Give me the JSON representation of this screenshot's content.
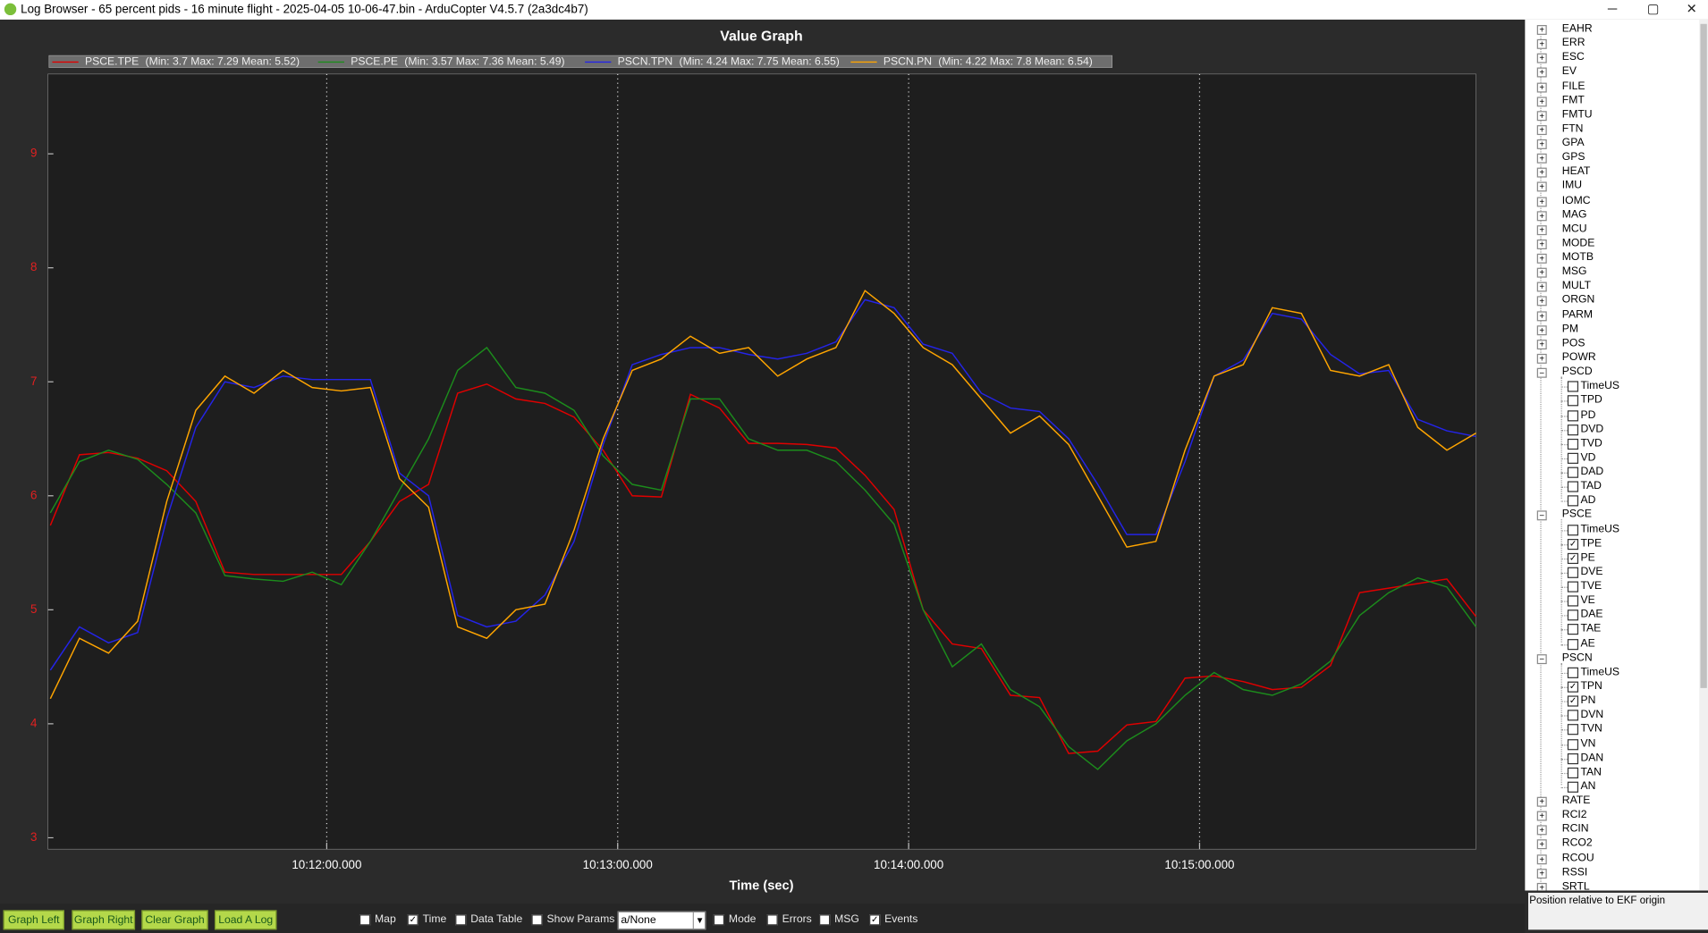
{
  "window": {
    "title": "Log Browser - 65 percent pids - 16 minute flight - 2025-04-05 10-06-47.bin - ArduCopter V4.5.7 (2a3dc4b7)"
  },
  "chart_data": {
    "type": "line",
    "title": "Value Graph",
    "x_label": "Time (sec)",
    "x": [
      36663,
      36669,
      36675,
      36681,
      36687,
      36693,
      36699,
      36705,
      36711,
      36717,
      36723,
      36729,
      36735,
      36741,
      36747,
      36753,
      36759,
      36765,
      36771,
      36777,
      36783,
      36789,
      36795,
      36801,
      36807,
      36813,
      36819,
      36825,
      36831,
      36837,
      36843,
      36849,
      36855,
      36861,
      36867,
      36873,
      36879,
      36885,
      36891,
      36897,
      36903,
      36909,
      36915,
      36921,
      36927,
      36933,
      36939,
      36945,
      36951,
      36957
    ],
    "series": [
      {
        "name": "PSCE.TPE",
        "stats": "(Min: 3.7 Max: 7.29 Mean: 5.52)",
        "color": "#e00000",
        "values": [
          5.74,
          6.36,
          6.38,
          6.33,
          6.22,
          5.95,
          5.33,
          5.31,
          5.31,
          5.31,
          5.31,
          5.6,
          5.95,
          6.1,
          6.9,
          6.98,
          6.85,
          6.81,
          6.69,
          6.4,
          6.0,
          5.99,
          6.89,
          6.77,
          6.46,
          6.46,
          6.45,
          6.42,
          6.18,
          5.88,
          5.0,
          4.7,
          4.66,
          4.25,
          4.23,
          3.74,
          3.76,
          3.99,
          4.02,
          4.4,
          4.42,
          4.37,
          4.3,
          4.32,
          4.51,
          5.15,
          5.19,
          5.23,
          5.27,
          4.94
        ]
      },
      {
        "name": "PSCE.PE",
        "stats": "(Min: 3.57 Max: 7.36 Mean: 5.49)",
        "color": "#1c8c1c",
        "values": [
          5.85,
          6.3,
          6.4,
          6.32,
          6.1,
          5.85,
          5.3,
          5.27,
          5.25,
          5.33,
          5.22,
          5.6,
          6.05,
          6.5,
          7.1,
          7.3,
          6.95,
          6.9,
          6.75,
          6.35,
          6.1,
          6.05,
          6.85,
          6.85,
          6.5,
          6.4,
          6.4,
          6.3,
          6.05,
          5.75,
          5.0,
          4.5,
          4.7,
          4.3,
          4.15,
          3.8,
          3.6,
          3.85,
          4.0,
          4.25,
          4.45,
          4.3,
          4.25,
          4.35,
          4.55,
          4.95,
          5.15,
          5.28,
          5.2,
          4.85
        ]
      },
      {
        "name": "PSCN.TPN",
        "stats": "(Min: 4.24 Max: 7.75 Mean: 6.55)",
        "color": "#2424e8",
        "values": [
          4.47,
          4.85,
          4.71,
          4.8,
          5.8,
          6.6,
          7.0,
          6.95,
          7.05,
          7.02,
          7.02,
          7.02,
          6.2,
          6.0,
          4.95,
          4.85,
          4.9,
          5.13,
          5.6,
          6.45,
          7.15,
          7.24,
          7.3,
          7.3,
          7.24,
          7.2,
          7.25,
          7.35,
          7.72,
          7.65,
          7.33,
          7.25,
          6.9,
          6.77,
          6.74,
          6.5,
          6.1,
          5.66,
          5.66,
          6.3,
          7.05,
          7.19,
          7.6,
          7.55,
          7.24,
          7.07,
          7.1,
          6.67,
          6.57,
          6.52
        ]
      },
      {
        "name": "PSCN.PN",
        "stats": "(Min: 4.22 Max: 7.8 Mean: 6.54)",
        "color": "#ffa500",
        "values": [
          4.22,
          4.75,
          4.62,
          4.9,
          5.95,
          6.75,
          7.05,
          6.9,
          7.1,
          6.95,
          6.92,
          6.95,
          6.15,
          5.9,
          4.85,
          4.75,
          5.0,
          5.05,
          5.7,
          6.5,
          7.1,
          7.2,
          7.4,
          7.25,
          7.3,
          7.05,
          7.2,
          7.3,
          7.8,
          7.6,
          7.3,
          7.15,
          6.85,
          6.55,
          6.7,
          6.45,
          6.0,
          5.55,
          5.6,
          6.4,
          7.05,
          7.15,
          7.65,
          7.6,
          7.1,
          7.05,
          7.15,
          6.6,
          6.4,
          6.55
        ]
      }
    ],
    "xlim": [
      36662.5,
      36957
    ],
    "xticks": [
      {
        "value": 36720,
        "label": "10:12:00.000"
      },
      {
        "value": 36780,
        "label": "10:13:00.000"
      },
      {
        "value": 36840,
        "label": "10:14:00.000"
      },
      {
        "value": 36900,
        "label": "10:15:00.000"
      }
    ],
    "ylim": [
      2.9,
      9.7
    ],
    "yticks": [
      3,
      4,
      5,
      6,
      7,
      8,
      9
    ],
    "xgrid": true,
    "legend": "top-left"
  },
  "tree": {
    "items": [
      {
        "label": "EAHR",
        "expanded": false
      },
      {
        "label": "ERR",
        "expanded": false
      },
      {
        "label": "ESC",
        "expanded": false
      },
      {
        "label": "EV",
        "expanded": false
      },
      {
        "label": "FILE",
        "expanded": false
      },
      {
        "label": "FMT",
        "expanded": false
      },
      {
        "label": "FMTU",
        "expanded": false
      },
      {
        "label": "FTN",
        "expanded": false
      },
      {
        "label": "GPA",
        "expanded": false
      },
      {
        "label": "GPS",
        "expanded": false
      },
      {
        "label": "HEAT",
        "expanded": false
      },
      {
        "label": "IMU",
        "expanded": false
      },
      {
        "label": "IOMC",
        "expanded": false
      },
      {
        "label": "MAG",
        "expanded": false
      },
      {
        "label": "MCU",
        "expanded": false
      },
      {
        "label": "MODE",
        "expanded": false
      },
      {
        "label": "MOTB",
        "expanded": false
      },
      {
        "label": "MSG",
        "expanded": false
      },
      {
        "label": "MULT",
        "expanded": false
      },
      {
        "label": "ORGN",
        "expanded": false
      },
      {
        "label": "PARM",
        "expanded": false
      },
      {
        "label": "PM",
        "expanded": false
      },
      {
        "label": "POS",
        "expanded": false
      },
      {
        "label": "POWR",
        "expanded": false
      },
      {
        "label": "PSCD",
        "expanded": true,
        "children": [
          {
            "label": "TimeUS",
            "checked": false
          },
          {
            "label": "TPD",
            "checked": false
          },
          {
            "label": "PD",
            "checked": false
          },
          {
            "label": "DVD",
            "checked": false
          },
          {
            "label": "TVD",
            "checked": false
          },
          {
            "label": "VD",
            "checked": false
          },
          {
            "label": "DAD",
            "checked": false
          },
          {
            "label": "TAD",
            "checked": false
          },
          {
            "label": "AD",
            "checked": false
          }
        ]
      },
      {
        "label": "PSCE",
        "expanded": true,
        "children": [
          {
            "label": "TimeUS",
            "checked": false
          },
          {
            "label": "TPE",
            "checked": true
          },
          {
            "label": "PE",
            "checked": true
          },
          {
            "label": "DVE",
            "checked": false
          },
          {
            "label": "TVE",
            "checked": false
          },
          {
            "label": "VE",
            "checked": false
          },
          {
            "label": "DAE",
            "checked": false
          },
          {
            "label": "TAE",
            "checked": false
          },
          {
            "label": "AE",
            "checked": false
          }
        ]
      },
      {
        "label": "PSCN",
        "expanded": true,
        "children": [
          {
            "label": "TimeUS",
            "checked": false
          },
          {
            "label": "TPN",
            "checked": true
          },
          {
            "label": "PN",
            "checked": true
          },
          {
            "label": "DVN",
            "checked": false
          },
          {
            "label": "TVN",
            "checked": false
          },
          {
            "label": "VN",
            "checked": false
          },
          {
            "label": "DAN",
            "checked": false
          },
          {
            "label": "TAN",
            "checked": false
          },
          {
            "label": "AN",
            "checked": false
          }
        ]
      },
      {
        "label": "RATE",
        "expanded": false
      },
      {
        "label": "RCI2",
        "expanded": false
      },
      {
        "label": "RCIN",
        "expanded": false
      },
      {
        "label": "RCO2",
        "expanded": false
      },
      {
        "label": "RCOU",
        "expanded": false
      },
      {
        "label": "RSSI",
        "expanded": false
      },
      {
        "label": "SRTL",
        "expanded": false
      }
    ]
  },
  "status": "Position relative to EKF origin",
  "toolbar": {
    "buttons": [
      "Graph Left",
      "Graph Right",
      "Clear Graph",
      "Load A Log"
    ],
    "checkboxes": [
      {
        "label": "Map",
        "checked": false
      },
      {
        "label": "Time",
        "checked": true
      },
      {
        "label": "Data Table",
        "checked": false
      },
      {
        "label": "Show Params",
        "checked": false
      }
    ],
    "combo": "a/None",
    "checkboxes2": [
      {
        "label": "Mode",
        "checked": false
      },
      {
        "label": "Errors",
        "checked": false
      },
      {
        "label": "MSG",
        "checked": false
      },
      {
        "label": "Events",
        "checked": true
      }
    ]
  }
}
